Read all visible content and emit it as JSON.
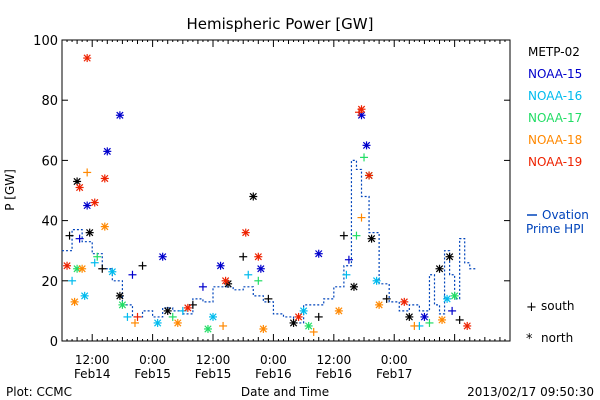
{
  "chart_data": {
    "type": "scatter",
    "title": "Hemispheric Power [GW]",
    "xlabel": "Date and Time",
    "ylabel": "P [GW]",
    "ylim": [
      0,
      100
    ],
    "y_ticks": [
      0,
      20,
      40,
      60,
      80,
      100
    ],
    "xlim": [
      "2013-02-14 06:00",
      "2013-02-17 23:00"
    ],
    "x_ticks": [
      {
        "t": "2013-02-14 12:00",
        "time": "12:00",
        "date": "Feb14"
      },
      {
        "t": "2013-02-15 00:00",
        "time": "0:00",
        "date": "Feb15"
      },
      {
        "t": "2013-02-15 12:00",
        "time": "12:00",
        "date": "Feb15"
      },
      {
        "t": "2013-02-16 00:00",
        "time": "0:00",
        "date": "Feb16"
      },
      {
        "t": "2013-02-16 12:00",
        "time": "12:00",
        "date": "Feb16"
      },
      {
        "t": "2013-02-17 00:00",
        "time": "0:00",
        "date": "Feb17"
      }
    ],
    "legend": {
      "placement": "right",
      "marker_south_label": "south",
      "marker_north_label": "north",
      "ovation_label_1": "Ovation",
      "ovation_label_2": "Prime HPI"
    },
    "series": [
      {
        "name": "METP-02",
        "color": "#000000",
        "points": [
          [
            "2013-02-14 07:30",
            35,
            "s"
          ],
          [
            "2013-02-14 09:00",
            53,
            "n"
          ],
          [
            "2013-02-14 11:30",
            36,
            "n"
          ],
          [
            "2013-02-14 14:00",
            24,
            "s"
          ],
          [
            "2013-02-14 17:30",
            15,
            "n"
          ],
          [
            "2013-02-14 22:00",
            25,
            "s"
          ],
          [
            "2013-02-15 03:00",
            10,
            "n"
          ],
          [
            "2013-02-15 08:00",
            12,
            "s"
          ],
          [
            "2013-02-15 15:00",
            19,
            "n"
          ],
          [
            "2013-02-15 18:00",
            28,
            "s"
          ],
          [
            "2013-02-15 20:00",
            48,
            "n"
          ],
          [
            "2013-02-15 23:00",
            14,
            "s"
          ],
          [
            "2013-02-16 04:00",
            6,
            "n"
          ],
          [
            "2013-02-16 09:00",
            8,
            "s"
          ],
          [
            "2013-02-16 14:00",
            35,
            "s"
          ],
          [
            "2013-02-16 16:00",
            18,
            "n"
          ],
          [
            "2013-02-16 19:30",
            34,
            "n"
          ],
          [
            "2013-02-16 22:30",
            14,
            "s"
          ],
          [
            "2013-02-17 03:00",
            8,
            "n"
          ],
          [
            "2013-02-17 09:00",
            24,
            "n"
          ],
          [
            "2013-02-17 11:00",
            28,
            "n"
          ],
          [
            "2013-02-17 13:00",
            7,
            "s"
          ]
        ]
      },
      {
        "name": "NOAA-15",
        "color": "#0000cc",
        "points": [
          [
            "2013-02-14 09:30",
            34,
            "s"
          ],
          [
            "2013-02-14 11:00",
            45,
            "n"
          ],
          [
            "2013-02-14 15:00",
            63,
            "n"
          ],
          [
            "2013-02-14 17:30",
            75,
            "n"
          ],
          [
            "2013-02-14 20:00",
            22,
            "s"
          ],
          [
            "2013-02-15 02:00",
            28,
            "n"
          ],
          [
            "2013-02-15 10:00",
            18,
            "s"
          ],
          [
            "2013-02-15 13:30",
            25,
            "n"
          ],
          [
            "2013-02-15 21:30",
            24,
            "n"
          ],
          [
            "2013-02-16 09:00",
            29,
            "n"
          ],
          [
            "2013-02-16 15:00",
            27,
            "s"
          ],
          [
            "2013-02-16 17:30",
            75,
            "n"
          ],
          [
            "2013-02-16 18:30",
            65,
            "n"
          ],
          [
            "2013-02-17 06:00",
            8,
            "n"
          ],
          [
            "2013-02-17 11:30",
            10,
            "s"
          ]
        ]
      },
      {
        "name": "NOAA-16",
        "color": "#00bbee",
        "points": [
          [
            "2013-02-14 08:00",
            20,
            "s"
          ],
          [
            "2013-02-14 10:30",
            15,
            "n"
          ],
          [
            "2013-02-14 12:30",
            26,
            "s"
          ],
          [
            "2013-02-14 16:00",
            23,
            "n"
          ],
          [
            "2013-02-14 19:00",
            8,
            "s"
          ],
          [
            "2013-02-15 01:00",
            6,
            "n"
          ],
          [
            "2013-02-15 06:00",
            10,
            "s"
          ],
          [
            "2013-02-15 12:00",
            8,
            "n"
          ],
          [
            "2013-02-15 19:00",
            22,
            "s"
          ],
          [
            "2013-02-16 06:00",
            10,
            "n"
          ],
          [
            "2013-02-16 14:30",
            22,
            "s"
          ],
          [
            "2013-02-16 20:30",
            20,
            "n"
          ],
          [
            "2013-02-17 05:00",
            5,
            "s"
          ],
          [
            "2013-02-17 10:30",
            14,
            "n"
          ]
        ]
      },
      {
        "name": "NOAA-17",
        "color": "#22dd66",
        "points": [
          [
            "2013-02-14 09:00",
            24,
            "n"
          ],
          [
            "2013-02-14 13:00",
            28,
            "s"
          ],
          [
            "2013-02-14 18:00",
            12,
            "n"
          ],
          [
            "2013-02-15 04:00",
            8,
            "s"
          ],
          [
            "2013-02-15 11:00",
            4,
            "n"
          ],
          [
            "2013-02-15 21:00",
            20,
            "s"
          ],
          [
            "2013-02-16 07:00",
            5,
            "n"
          ],
          [
            "2013-02-16 16:30",
            35,
            "s"
          ],
          [
            "2013-02-16 18:00",
            61,
            "s"
          ],
          [
            "2013-02-16 19:00",
            55,
            "n"
          ],
          [
            "2013-02-17 07:00",
            6,
            "s"
          ],
          [
            "2013-02-17 12:00",
            15,
            "n"
          ]
        ]
      },
      {
        "name": "NOAA-18",
        "color": "#ff8800",
        "points": [
          [
            "2013-02-14 08:30",
            13,
            "n"
          ],
          [
            "2013-02-14 10:00",
            24,
            "n"
          ],
          [
            "2013-02-14 11:00",
            56,
            "s"
          ],
          [
            "2013-02-14 14:30",
            38,
            "n"
          ],
          [
            "2013-02-14 20:30",
            6,
            "s"
          ],
          [
            "2013-02-15 05:00",
            6,
            "n"
          ],
          [
            "2013-02-15 14:00",
            5,
            "s"
          ],
          [
            "2013-02-15 22:00",
            4,
            "n"
          ],
          [
            "2013-02-16 08:00",
            3,
            "s"
          ],
          [
            "2013-02-16 13:00",
            10,
            "n"
          ],
          [
            "2013-02-16 17:30",
            41,
            "s"
          ],
          [
            "2013-02-16 21:00",
            12,
            "n"
          ],
          [
            "2013-02-17 04:00",
            5,
            "s"
          ],
          [
            "2013-02-17 09:30",
            7,
            "n"
          ]
        ]
      },
      {
        "name": "NOAA-19",
        "color": "#ee2200",
        "points": [
          [
            "2013-02-14 07:00",
            25,
            "n"
          ],
          [
            "2013-02-14 09:30",
            51,
            "n"
          ],
          [
            "2013-02-14 11:00",
            94,
            "n"
          ],
          [
            "2013-02-14 12:30",
            46,
            "n"
          ],
          [
            "2013-02-14 14:30",
            54,
            "n"
          ],
          [
            "2013-02-14 21:00",
            8,
            "s"
          ],
          [
            "2013-02-15 07:00",
            11,
            "n"
          ],
          [
            "2013-02-15 14:30",
            20,
            "n"
          ],
          [
            "2013-02-15 18:30",
            36,
            "n"
          ],
          [
            "2013-02-15 21:00",
            28,
            "n"
          ],
          [
            "2013-02-16 05:00",
            8,
            "n"
          ],
          [
            "2013-02-16 17:00",
            76,
            "s"
          ],
          [
            "2013-02-16 17:30",
            77,
            "n"
          ],
          [
            "2013-02-16 19:00",
            55,
            "n"
          ],
          [
            "2013-02-17 02:00",
            13,
            "n"
          ],
          [
            "2013-02-17 14:30",
            5,
            "n"
          ]
        ]
      }
    ],
    "ovation_hpi": {
      "name": "Ovation Prime HPI",
      "color": "#0044bb",
      "points": [
        [
          "2013-02-14 06:00",
          30
        ],
        [
          "2013-02-14 08:00",
          37
        ],
        [
          "2013-02-14 10:00",
          33
        ],
        [
          "2013-02-14 12:00",
          29
        ],
        [
          "2013-02-14 14:00",
          24
        ],
        [
          "2013-02-14 16:00",
          20
        ],
        [
          "2013-02-14 18:00",
          12
        ],
        [
          "2013-02-14 20:00",
          8
        ],
        [
          "2013-02-14 22:00",
          10
        ],
        [
          "2013-02-15 00:00",
          8
        ],
        [
          "2013-02-15 02:00",
          11
        ],
        [
          "2013-02-15 04:00",
          10
        ],
        [
          "2013-02-15 06:00",
          9
        ],
        [
          "2013-02-15 08:00",
          14
        ],
        [
          "2013-02-15 10:00",
          13
        ],
        [
          "2013-02-15 12:00",
          18
        ],
        [
          "2013-02-15 14:00",
          18
        ],
        [
          "2013-02-15 16:00",
          17
        ],
        [
          "2013-02-15 18:00",
          18
        ],
        [
          "2013-02-15 20:00",
          15
        ],
        [
          "2013-02-15 22:00",
          13
        ],
        [
          "2013-02-16 00:00",
          9
        ],
        [
          "2013-02-16 02:00",
          8
        ],
        [
          "2013-02-16 04:00",
          6
        ],
        [
          "2013-02-16 06:00",
          12
        ],
        [
          "2013-02-16 08:00",
          12
        ],
        [
          "2013-02-16 10:00",
          14
        ],
        [
          "2013-02-16 12:00",
          18
        ],
        [
          "2013-02-16 14:00",
          25
        ],
        [
          "2013-02-16 15:30",
          60
        ],
        [
          "2013-02-16 16:30",
          57
        ],
        [
          "2013-02-16 17:30",
          48
        ],
        [
          "2013-02-16 19:00",
          36
        ],
        [
          "2013-02-16 21:00",
          19
        ],
        [
          "2013-02-16 23:00",
          13
        ],
        [
          "2013-02-17 01:00",
          10
        ],
        [
          "2013-02-17 03:00",
          12
        ],
        [
          "2013-02-17 05:00",
          10
        ],
        [
          "2013-02-17 07:00",
          22
        ],
        [
          "2013-02-17 08:00",
          12
        ],
        [
          "2013-02-17 09:00",
          9
        ],
        [
          "2013-02-17 10:00",
          30
        ],
        [
          "2013-02-17 11:00",
          22
        ],
        [
          "2013-02-17 12:00",
          14
        ],
        [
          "2013-02-17 13:00",
          34
        ],
        [
          "2013-02-17 14:00",
          26
        ],
        [
          "2013-02-17 15:00",
          24
        ]
      ]
    }
  },
  "footer": {
    "left": "Plot: CCMC",
    "center": "Date and Time",
    "right": "2013/02/17 09:50:30"
  }
}
